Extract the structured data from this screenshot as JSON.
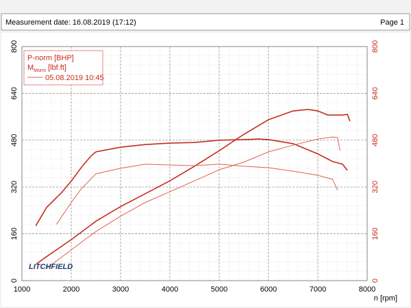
{
  "header": {
    "left": "Measurement date: 16.08.2019 (17:12)",
    "right": "Page 1"
  },
  "chart_data": {
    "type": "line",
    "xlabel": "n [rpm]",
    "xlim": [
      1000,
      8000
    ],
    "xticks": [
      1000,
      2000,
      3000,
      4000,
      5000,
      6000,
      7000,
      8000
    ],
    "ylim": [
      0,
      800
    ],
    "yticks": [
      0,
      160,
      320,
      480,
      640,
      800
    ],
    "y2lim": [
      0,
      800
    ],
    "y2ticks": [
      0,
      160,
      320,
      480,
      640,
      800
    ],
    "grid": true,
    "legend": {
      "power": "P-norm [BHP]",
      "torque_main": "M",
      "torque_sub": "Morm",
      "torque_unit": "[lbf.ft]",
      "run": "05.08.2019 10:45"
    },
    "logo": "LITCHFIELD",
    "series": [
      {
        "color": "#c42b1c",
        "width": 1.6,
        "x": [
          1280,
          1500,
          1800,
          2000,
          2200,
          2400,
          2500,
          3000,
          3500,
          4000,
          4500,
          5000,
          5500,
          5800,
          6000,
          6500,
          7000,
          7300,
          7500,
          7600
        ],
        "values": [
          187,
          250,
          300,
          340,
          386,
          426,
          440,
          456,
          465,
          470,
          472,
          480,
          482,
          484,
          482,
          468,
          433,
          407,
          398,
          377
        ],
        "axis": "y2"
      },
      {
        "color": "#c42b1c",
        "width": 1.6,
        "x": [
          1300,
          1500,
          2000,
          2500,
          3000,
          3500,
          4000,
          4500,
          5000,
          5500,
          6000,
          6500,
          6800,
          7000,
          7200,
          7500,
          7600,
          7650
        ],
        "values": [
          58,
          82,
          140,
          203,
          253,
          297,
          341,
          391,
          444,
          500,
          550,
          580,
          585,
          580,
          566,
          566,
          568,
          545
        ]
      },
      {
        "color": "#e0604a",
        "width": 1,
        "x": [
          1700,
          2000,
          2200,
          2500,
          3000,
          3500,
          4000,
          4500,
          5000,
          5500,
          6000,
          6500,
          7000,
          7300,
          7400
        ],
        "values": [
          192,
          267,
          313,
          365,
          384,
          398,
          395,
          393,
          398,
          391,
          386,
          374,
          360,
          346,
          309
        ],
        "axis": "y2"
      },
      {
        "color": "#e0604a",
        "width": 1,
        "x": [
          1500,
          2000,
          2500,
          3000,
          3500,
          4000,
          4500,
          5000,
          5500,
          6000,
          6500,
          7000,
          7300,
          7400,
          7450
        ],
        "values": [
          42,
          105,
          168,
          220,
          267,
          304,
          341,
          379,
          405,
          440,
          463,
          484,
          491,
          489,
          444
        ]
      }
    ]
  }
}
